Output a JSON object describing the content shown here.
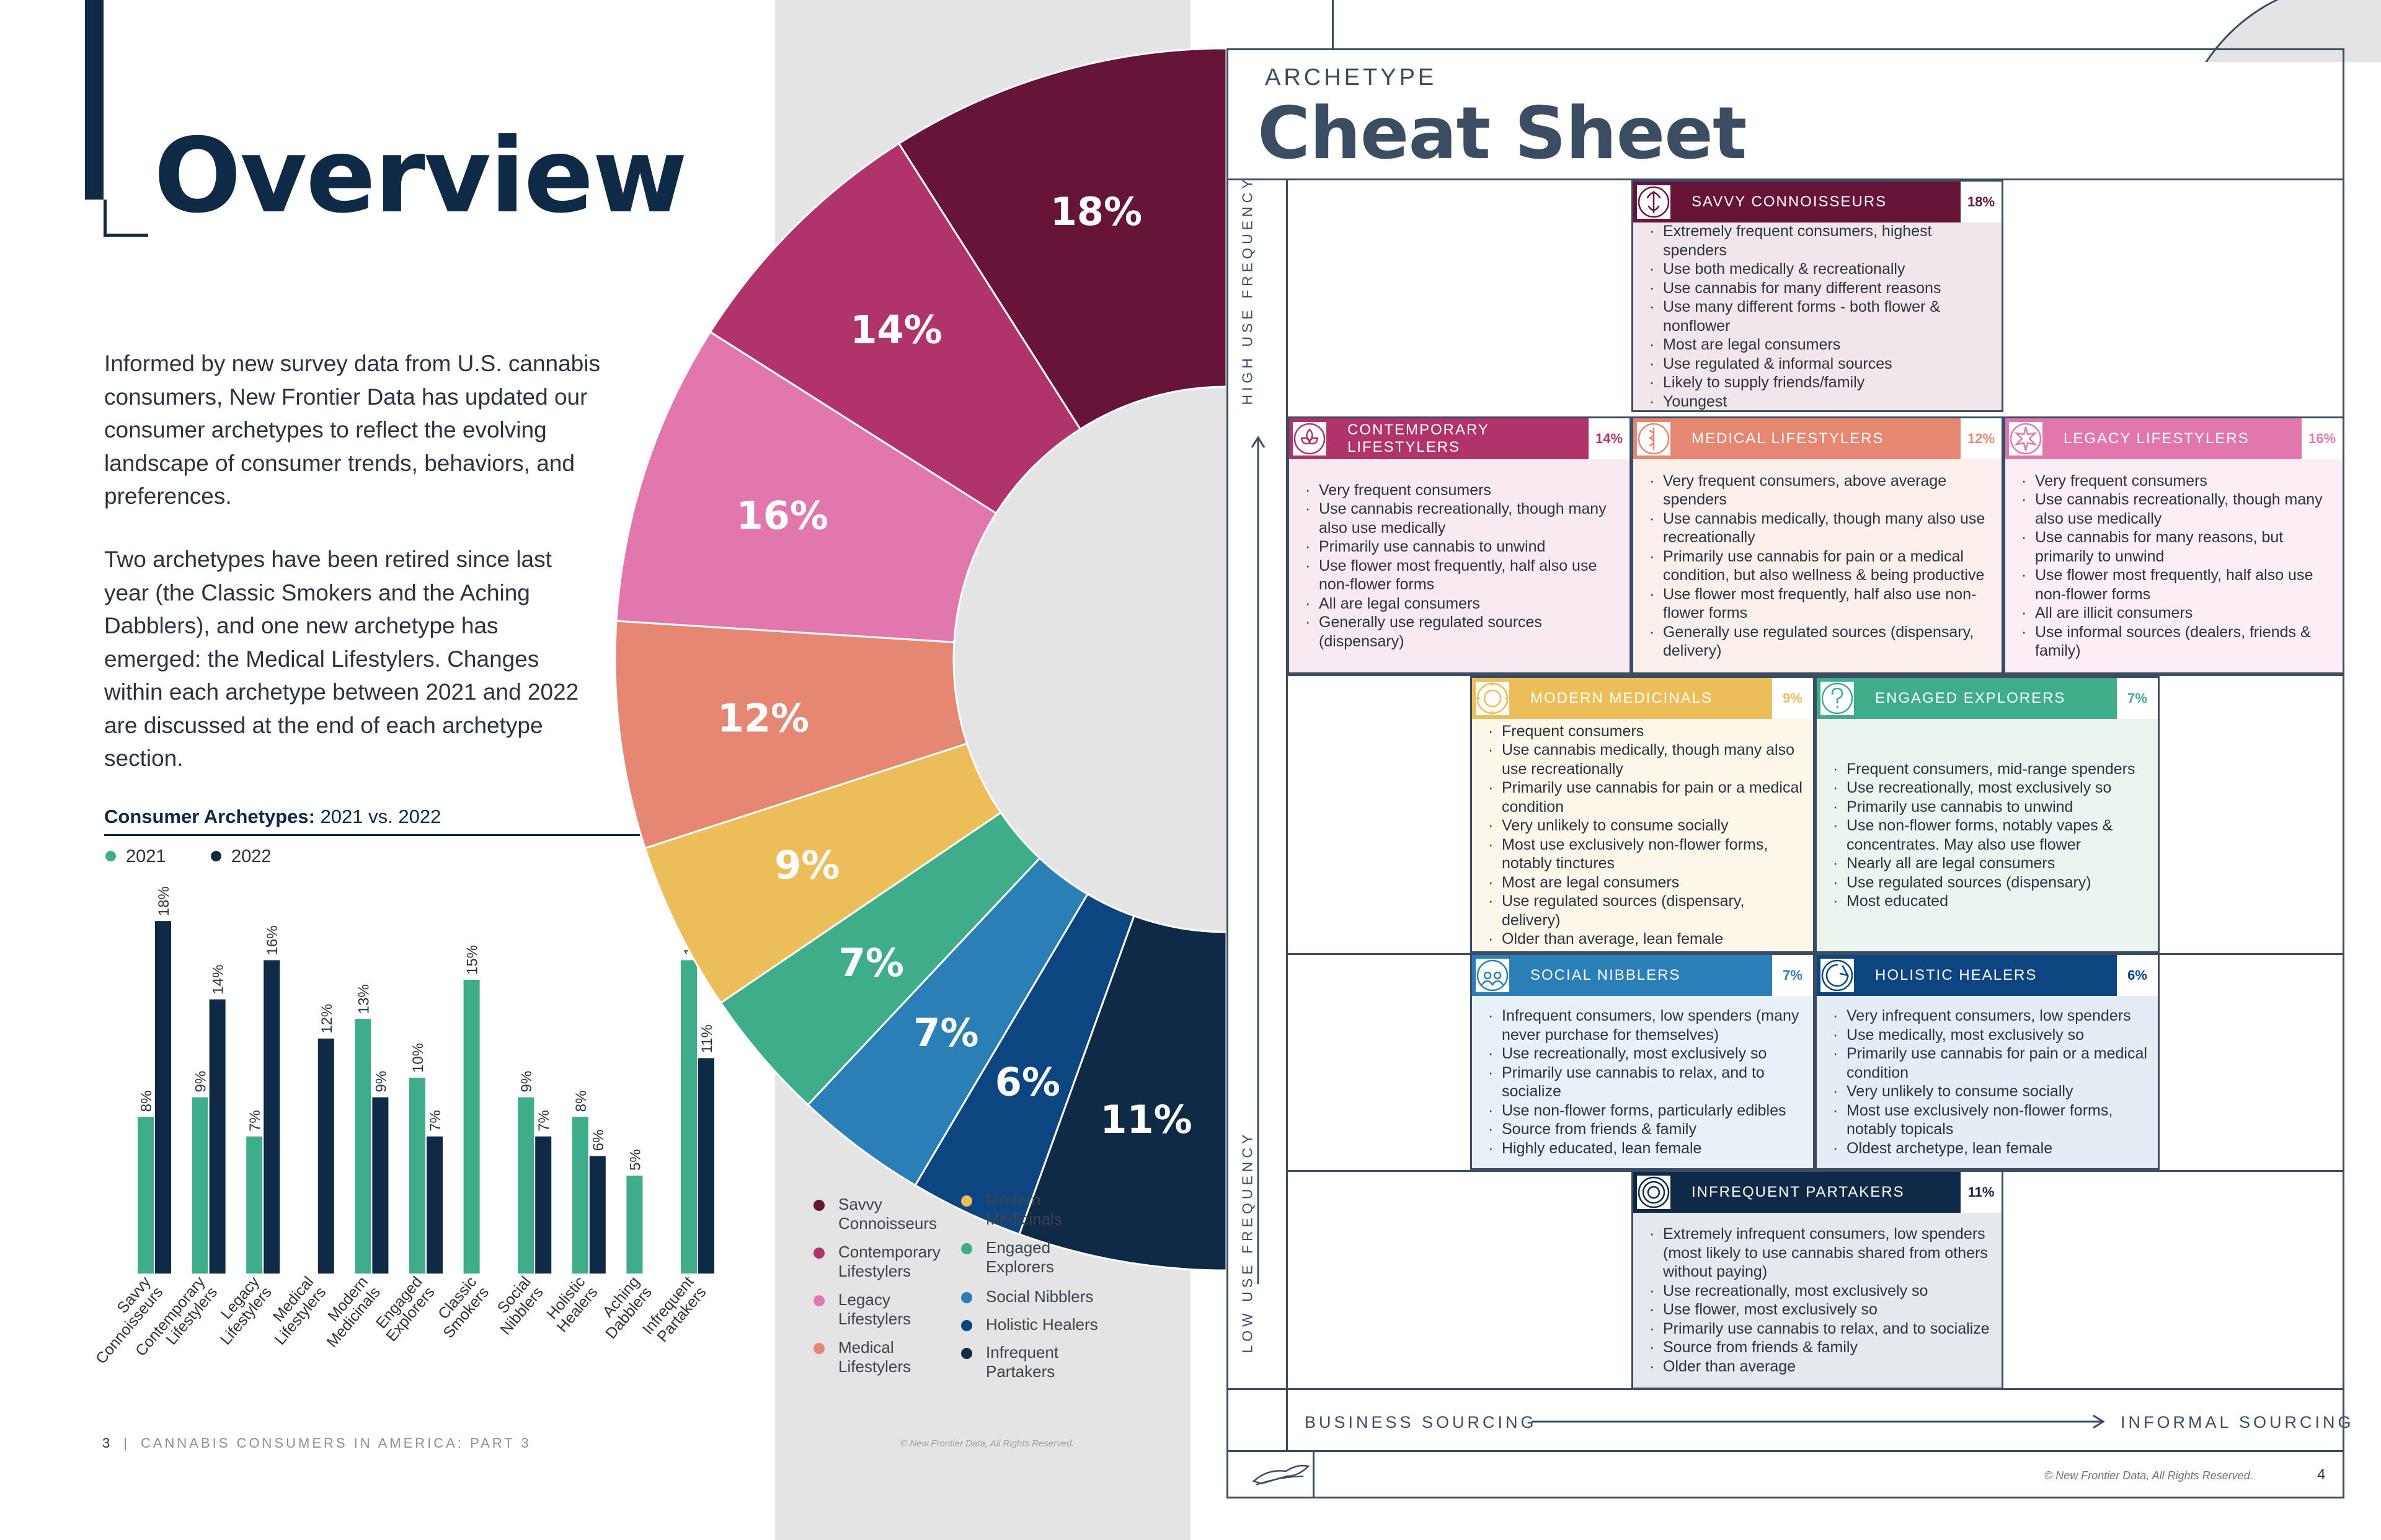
{
  "left_page": {
    "title": "Overview",
    "para1": "Informed by new survey data from U.S. cannabis consumers, New Frontier Data has updated our consumer archetypes to reflect the evolving landscape of consumer trends, behaviors, and preferences.",
    "para2": "Two archetypes have been retired since last year (the Classic Smokers and the Aching Dabblers), and one new archetype has emerged: the Medical Lifestylers. Changes within each archetype between 2021 and 2022 are discussed at the end of each archetype section.",
    "chart_title_bold": "Consumer Archetypes:",
    "chart_title_rest": " 2021 vs. 2022",
    "footer_page": "3",
    "footer_text": "CANNABIS CONSUMERS IN AMERICA: PART 3",
    "copyright": "© New Frontier Data, All Rights Reserved."
  },
  "chart_data": [
    {
      "type": "bar",
      "title": "Consumer Archetypes: 2021 vs. 2022",
      "categories": [
        "Savvy Connoisseurs",
        "Contemporary Lifestylers",
        "Legacy Lifestylers",
        "Medical Lifestylers",
        "Modern Medicinals",
        "Engaged Explorers",
        "Classic Smokers",
        "Social Nibblers",
        "Holistic Healers",
        "Aching Dabblers",
        "Infrequent Partakers"
      ],
      "category_lines": [
        [
          "Savvy",
          "Connoisseurs"
        ],
        [
          "Contemporary",
          "Lifestylers"
        ],
        [
          "Legacy",
          "Lifestylers"
        ],
        [
          "Medical",
          "Lifestylers"
        ],
        [
          "Modern",
          "Medicinals"
        ],
        [
          "Engaged",
          "Explorers"
        ],
        [
          "Classic",
          "Smokers"
        ],
        [
          "Social",
          "Nibblers"
        ],
        [
          "Holistic",
          "Healers"
        ],
        [
          "Aching",
          "Dabblers"
        ],
        [
          "Infrequent",
          "Partakers"
        ]
      ],
      "series": [
        {
          "name": "2021",
          "color": "#3fad8a",
          "values": [
            8,
            9,
            7,
            null,
            13,
            10,
            15,
            9,
            8,
            5,
            16
          ],
          "labels": [
            "8%",
            "9%",
            "7%",
            "",
            "13%",
            "10%",
            "15%",
            "9%",
            "8%",
            "5%",
            "16%"
          ]
        },
        {
          "name": "2022",
          "color": "#0f2a47",
          "values": [
            18,
            14,
            16,
            12,
            9,
            7,
            null,
            7,
            6,
            null,
            11
          ],
          "labels": [
            "18%",
            "14%",
            "16%",
            "12%",
            "9%",
            "7%",
            "",
            "7%",
            "6%",
            "",
            "11%"
          ]
        }
      ],
      "ylim": [
        0,
        18
      ],
      "legend_position": "top-left"
    },
    {
      "type": "pie",
      "donut": true,
      "categories": [
        "Savvy Connoisseurs",
        "Contemporary Lifestylers",
        "Legacy Lifestylers",
        "Medical Lifestylers",
        "Modern Medicinals",
        "Engaged Explorers",
        "Social Nibblers",
        "Holistic Healers",
        "Infrequent Partakers"
      ],
      "values": [
        18,
        14,
        16,
        12,
        9,
        7,
        7,
        6,
        11
      ],
      "labels": [
        "18%",
        "14%",
        "16%",
        "12%",
        "9%",
        "7%",
        "7%",
        "6%",
        "11%"
      ],
      "colors": [
        "#661538",
        "#b0346a",
        "#e277ae",
        "#e58772",
        "#ecbe5a",
        "#3fad8a",
        "#2a7fb7",
        "#0d4580",
        "#0f2a47"
      ]
    }
  ],
  "pie_legend": [
    {
      "lines": [
        "Savvy",
        "Connoisseurs"
      ],
      "color": "#661538"
    },
    {
      "lines": [
        "Contemporary",
        "Lifestylers"
      ],
      "color": "#b0346a"
    },
    {
      "lines": [
        "Legacy",
        "Lifestylers"
      ],
      "color": "#e277ae"
    },
    {
      "lines": [
        "Medical",
        "Lifestylers"
      ],
      "color": "#e58772"
    },
    {
      "lines": [
        "Modern",
        "Medicinals"
      ],
      "color": "#ecbe5a"
    },
    {
      "lines": [
        "Engaged",
        "Explorers"
      ],
      "color": "#3fad8a"
    },
    {
      "lines": [
        "Social Nibblers"
      ],
      "color": "#2a7fb7"
    },
    {
      "lines": [
        "Holistic Healers"
      ],
      "color": "#0d4580"
    },
    {
      "lines": [
        "Infrequent",
        "Partakers"
      ],
      "color": "#0f2a47"
    }
  ],
  "right_page": {
    "archetype_label": "ARCHETYPE",
    "title": "Cheat Sheet",
    "axis_high": "HIGH USE FREQUENCY",
    "axis_low": "LOW USE FREQUENCY",
    "sourcing_left": "BUSINESS SOURCING",
    "sourcing_right": "INFORMAL SOURCING",
    "copyright": "© New Frontier Data, All Rights Reserved.",
    "page_num": "4"
  },
  "cards": [
    {
      "name": "SAVVY CONNOISSEURS",
      "pct": "18%",
      "color": "#661538",
      "bg": "#f1e7ea",
      "icon": "connoisseur-icon",
      "bullets": [
        "Extremely frequent consumers, highest spenders",
        "Use both medically & recreationally",
        "Use cannabis for many different reasons",
        "Use many different forms - both flower & nonflower",
        "Most are legal consumers",
        "Use regulated & informal sources",
        "Likely to supply friends/family",
        "Youngest"
      ]
    },
    {
      "name": "CONTEMPORARY LIFESTYLERS",
      "pct": "14%",
      "color": "#b0346a",
      "bg": "#f8eaf0",
      "icon": "flower-icon",
      "bullets": [
        "Very frequent consumers",
        "Use cannabis recreationally, though many also use medically",
        "Primarily use cannabis to unwind",
        "Use flower most frequently, half also use non-flower forms",
        "All are legal consumers",
        "Generally use regulated sources (dispensary)"
      ]
    },
    {
      "name": "MEDICAL LIFESTYLERS",
      "pct": "12%",
      "color": "#e58772",
      "bg": "#fbefeb",
      "icon": "medical-icon",
      "bullets": [
        "Very frequent consumers, above average spenders",
        "Use cannabis medically, though many also use recreationally",
        "Primarily use cannabis for pain or a medical condition, but also wellness & being productive",
        "Use flower most frequently, half also use non-flower forms",
        "Generally use regulated sources (dispensary, delivery)"
      ]
    },
    {
      "name": "LEGACY LIFESTYLERS",
      "pct": "16%",
      "color": "#e277ae",
      "bg": "#fbeef5",
      "icon": "legacy-icon",
      "bullets": [
        "Very frequent consumers",
        "Use cannabis recreationally, though many also use medically",
        "Use cannabis for many reasons, but primarily to unwind",
        "Use flower most frequently, half also use non-flower forms",
        "All are illicit consumers",
        "Use informal sources (dealers, friends & family)"
      ]
    },
    {
      "name": "MODERN MEDICINALS",
      "pct": "9%",
      "color": "#ecbe5a",
      "bg": "#fdf7ea",
      "icon": "sun-icon",
      "bullets": [
        "Frequent consumers",
        "Use cannabis medically, though many also use recreationally",
        "Primarily use cannabis for pain or a medical condition",
        "Very unlikely to consume socially",
        "Most use exclusively non-flower forms, notably tinctures",
        "Most are legal consumers",
        "Use regulated sources (dispensary, delivery)",
        "Older than average, lean female"
      ]
    },
    {
      "name": "ENGAGED EXPLORERS",
      "pct": "7%",
      "color": "#3fad8a",
      "bg": "#eaf5f0",
      "icon": "question-icon",
      "bullets": [
        "Frequent consumers, mid-range spenders",
        "Use recreationally, most exclusively so",
        "Primarily use cannabis to unwind",
        "Use non-flower forms, notably vapes & concentrates. May also use flower",
        "Nearly all are legal consumers",
        "Use regulated sources (dispensary)",
        "Most educated"
      ]
    },
    {
      "name": "SOCIAL NIBBLERS",
      "pct": "7%",
      "color": "#2a7fb7",
      "bg": "#e8f1f8",
      "icon": "people-icon",
      "bullets": [
        "Infrequent consumers, low spenders (many never purchase for themselves)",
        "Use recreationally, most exclusively so",
        "Primarily use cannabis to relax, and to socialize",
        "Use non-flower forms, particularly edibles",
        "Source from friends & family",
        "Highly educated, lean female"
      ]
    },
    {
      "name": "HOLISTIC HEALERS",
      "pct": "6%",
      "color": "#0d4580",
      "bg": "#e6ecf4",
      "icon": "healer-icon",
      "bullets": [
        "Very infrequent consumers, low spenders",
        "Use medically, most exclusively so",
        "Primarily use cannabis for pain or a medical condition",
        "Very unlikely to consume socially",
        "Most use exclusively non-flower forms, notably topicals",
        "Oldest archetype, lean female"
      ]
    },
    {
      "name": "INFREQUENT PARTAKERS",
      "pct": "11%",
      "color": "#0f2a47",
      "bg": "#e5e8ec",
      "icon": "partaker-icon",
      "bullets": [
        "Extremely infrequent consumers, low spenders (most likely to use cannabis shared from others without paying)",
        "Use recreationally, most exclusively so",
        "Use flower, most exclusively so",
        "Primarily use cannabis to relax, and to socialize",
        "Source from friends & family",
        "Older than average"
      ]
    }
  ]
}
